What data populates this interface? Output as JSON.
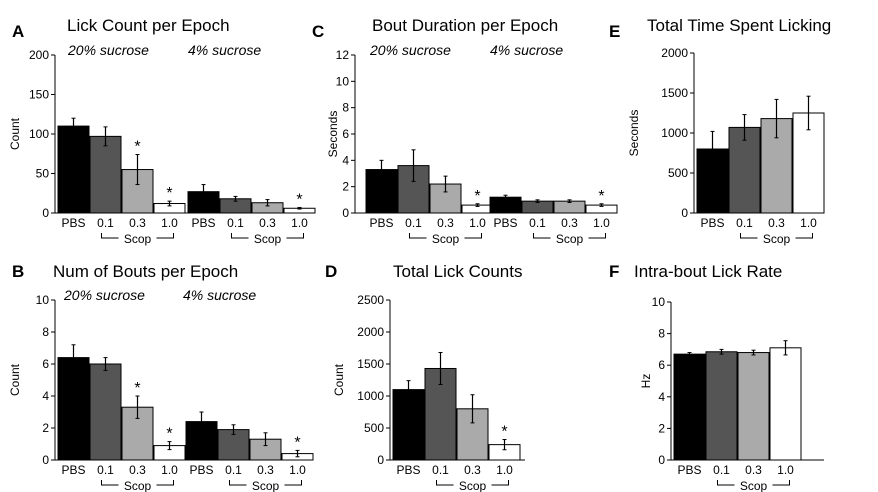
{
  "chart_data": [
    {
      "id": "A",
      "letter": "A",
      "type": "bar",
      "title": "Lick Count per Epoch",
      "ylabel": "Count",
      "ylim": [
        0,
        200
      ],
      "yticks": [
        0,
        50,
        100,
        150,
        200
      ],
      "condition_labels": [
        "20% sucrose",
        "4% sucrose"
      ],
      "categories": [
        "PBS",
        "0.1",
        "0.3",
        "1.0"
      ],
      "group_label": "Scop",
      "groups": [
        {
          "name": "20% sucrose",
          "values": [
            110,
            97,
            55,
            12
          ],
          "errors": [
            10,
            12,
            19,
            3
          ],
          "stars": [
            false,
            false,
            true,
            true
          ]
        },
        {
          "name": "4% sucrose",
          "values": [
            27,
            18,
            13,
            6
          ],
          "errors": [
            9,
            3,
            4,
            1
          ],
          "stars": [
            false,
            false,
            false,
            true
          ]
        }
      ]
    },
    {
      "id": "C",
      "letter": "C",
      "type": "bar",
      "title": "Bout Duration per Epoch",
      "ylabel": "Seconds",
      "ylim": [
        0,
        12
      ],
      "yticks": [
        0,
        2,
        4,
        6,
        8,
        10,
        12
      ],
      "condition_labels": [
        "20% sucrose",
        "4% sucrose"
      ],
      "categories": [
        "PBS",
        "0.1",
        "0.3",
        "1.0"
      ],
      "group_label": "Scop",
      "groups": [
        {
          "name": "20% sucrose",
          "values": [
            3.3,
            3.6,
            2.2,
            0.6
          ],
          "errors": [
            0.7,
            1.2,
            0.6,
            0.1
          ],
          "stars": [
            false,
            false,
            false,
            true
          ]
        },
        {
          "name": "4% sucrose",
          "values": [
            1.2,
            0.9,
            0.9,
            0.6
          ],
          "errors": [
            0.15,
            0.1,
            0.1,
            0.1
          ],
          "stars": [
            false,
            false,
            false,
            true
          ]
        }
      ]
    },
    {
      "id": "E",
      "letter": "E",
      "type": "bar",
      "title": "Total Time Spent Licking",
      "ylabel": "Seconds",
      "ylim": [
        0,
        2000
      ],
      "yticks": [
        0,
        500,
        1000,
        1500,
        2000
      ],
      "condition_labels": [],
      "categories": [
        "PBS",
        "0.1",
        "0.3",
        "1.0"
      ],
      "group_label": "Scop",
      "groups": [
        {
          "name": "",
          "values": [
            800,
            1070,
            1180,
            1250
          ],
          "errors": [
            220,
            160,
            240,
            210
          ],
          "stars": [
            false,
            false,
            false,
            false
          ]
        }
      ]
    },
    {
      "id": "B",
      "letter": "B",
      "type": "bar",
      "title": "Num of Bouts per Epoch",
      "ylabel": "Count",
      "ylim": [
        0,
        10
      ],
      "yticks": [
        0,
        2,
        4,
        6,
        8,
        10
      ],
      "condition_labels": [
        "20% sucrose",
        "4% sucrose"
      ],
      "categories": [
        "PBS",
        "0.1",
        "0.3",
        "1.0"
      ],
      "group_label": "Scop",
      "groups": [
        {
          "name": "20% sucrose",
          "values": [
            6.4,
            6.0,
            3.3,
            0.9
          ],
          "errors": [
            0.8,
            0.4,
            0.7,
            0.25
          ],
          "stars": [
            false,
            false,
            true,
            true
          ]
        },
        {
          "name": "4% sucrose",
          "values": [
            2.4,
            1.9,
            1.3,
            0.4
          ],
          "errors": [
            0.6,
            0.3,
            0.4,
            0.2
          ],
          "stars": [
            false,
            false,
            false,
            true
          ]
        }
      ]
    },
    {
      "id": "D",
      "letter": "D",
      "type": "bar",
      "title": "Total Lick Counts",
      "ylabel": "Count",
      "ylim": [
        0,
        2500
      ],
      "yticks": [
        0,
        500,
        1000,
        1500,
        2000,
        2500
      ],
      "condition_labels": [],
      "categories": [
        "PBS",
        "0.1",
        "0.3",
        "1.0"
      ],
      "group_label": "Scop",
      "groups": [
        {
          "name": "",
          "values": [
            1100,
            1430,
            800,
            240
          ],
          "errors": [
            140,
            250,
            220,
            80
          ],
          "stars": [
            false,
            false,
            false,
            true
          ]
        }
      ]
    },
    {
      "id": "F",
      "letter": "F",
      "type": "bar",
      "title": "Intra-bout Lick Rate",
      "ylabel": "Hz",
      "ylim": [
        0,
        10
      ],
      "yticks": [
        0,
        2,
        4,
        6,
        8,
        10
      ],
      "condition_labels": [],
      "categories": [
        "PBS",
        "0.1",
        "0.3",
        "1.0"
      ],
      "group_label": "Scop",
      "groups": [
        {
          "name": "",
          "values": [
            6.7,
            6.85,
            6.8,
            7.1
          ],
          "errors": [
            0.1,
            0.15,
            0.15,
            0.45
          ],
          "stars": [
            false,
            false,
            false,
            false
          ]
        }
      ]
    }
  ],
  "colors": {
    "bar_fills": [
      "#000000",
      "#555555",
      "#aaaaaa",
      "#ffffff"
    ],
    "stroke": "#000000"
  }
}
